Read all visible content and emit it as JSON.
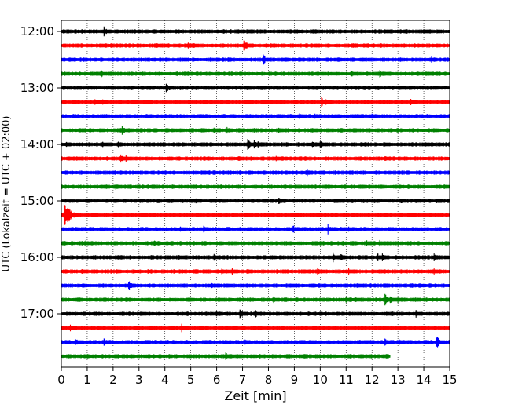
{
  "chart_data": {
    "type": "line",
    "title": "",
    "xlabel": "Zeit  [min]",
    "ylabel": "UTC (Lokalzeit = UTC + 02:00)",
    "xlim": [
      0,
      15
    ],
    "xticks": [
      "0",
      "1",
      "2",
      "3",
      "4",
      "5",
      "6",
      "7",
      "8",
      "9",
      "10",
      "11",
      "12",
      "13",
      "14",
      "15"
    ],
    "yticks": [
      "12:00",
      "13:00",
      "14:00",
      "15:00",
      "16:00",
      "17:00"
    ],
    "row_interval_min": 15,
    "row_colors": [
      "#000000",
      "#ff0000",
      "#0000ff",
      "#008000"
    ],
    "grid_x": "dotted vertical lines at each minute",
    "rows": [
      {
        "start": "12:00",
        "color": "#000000",
        "end_min": 15,
        "events": [
          [
            1.65,
            1.0
          ],
          [
            7.2,
            0.4
          ],
          [
            12.5,
            0.5
          ],
          [
            14.0,
            0.5
          ]
        ]
      },
      {
        "start": "12:15",
        "color": "#ff0000",
        "end_min": 15,
        "events": [
          [
            1.5,
            0.4
          ],
          [
            3.7,
            0.5
          ],
          [
            4.9,
            0.9
          ],
          [
            5.1,
            0.7
          ],
          [
            7.05,
            1.3
          ],
          [
            8.1,
            0.6
          ],
          [
            9.8,
            0.4
          ],
          [
            11.7,
            0.4
          ]
        ]
      },
      {
        "start": "12:30",
        "color": "#0000ff",
        "end_min": 15,
        "events": [
          [
            0.3,
            0.4
          ],
          [
            4.7,
            0.4
          ],
          [
            7.8,
            1.1
          ],
          [
            8.6,
            0.4
          ],
          [
            11.6,
            0.4
          ],
          [
            14.3,
            0.6
          ]
        ]
      },
      {
        "start": "12:45",
        "color": "#008000",
        "end_min": 15,
        "events": [
          [
            1.55,
            0.7
          ],
          [
            1.85,
            0.5
          ],
          [
            4.8,
            0.4
          ],
          [
            11.2,
            0.7
          ],
          [
            12.3,
            0.8
          ],
          [
            14.2,
            0.4
          ]
        ]
      },
      {
        "start": "13:00",
        "color": "#000000",
        "end_min": 15,
        "events": [
          [
            4.05,
            1.1
          ],
          [
            13.1,
            0.5
          ],
          [
            14.4,
            0.3
          ]
        ]
      },
      {
        "start": "13:15",
        "color": "#ff0000",
        "end_min": 15,
        "events": [
          [
            1.3,
            0.6
          ],
          [
            1.6,
            0.5
          ],
          [
            3.3,
            0.4
          ],
          [
            7.1,
            0.6
          ],
          [
            7.8,
            0.6
          ],
          [
            10.05,
            1.0
          ],
          [
            10.2,
            0.8
          ],
          [
            13.5,
            0.8
          ]
        ]
      },
      {
        "start": "13:30",
        "color": "#0000ff",
        "end_min": 15,
        "events": [
          [
            8.35,
            0.6
          ],
          [
            9.2,
            0.6
          ],
          [
            9.8,
            0.5
          ],
          [
            11.3,
            0.4
          ],
          [
            11.5,
            0.4
          ],
          [
            12.0,
            0.6
          ]
        ]
      },
      {
        "start": "13:45",
        "color": "#008000",
        "end_min": 15,
        "events": [
          [
            0.7,
            0.6
          ],
          [
            1.5,
            0.4
          ],
          [
            2.35,
            1.0
          ],
          [
            5.9,
            0.7
          ],
          [
            6.4,
            0.6
          ],
          [
            8.4,
            0.5
          ],
          [
            9.7,
            0.5
          ],
          [
            14.4,
            0.5
          ]
        ]
      },
      {
        "start": "14:00",
        "color": "#000000",
        "end_min": 15,
        "events": [
          [
            0.2,
            0.5
          ],
          [
            1.6,
            0.5
          ],
          [
            2.2,
            0.5
          ],
          [
            7.2,
            1.1
          ],
          [
            7.45,
            0.9
          ],
          [
            7.6,
            0.8
          ],
          [
            9.7,
            0.6
          ],
          [
            10.0,
            1.0
          ],
          [
            12.5,
            0.4
          ],
          [
            14.0,
            0.5
          ]
        ]
      },
      {
        "start": "14:15",
        "color": "#ff0000",
        "end_min": 15,
        "events": [
          [
            0.3,
            0.5
          ],
          [
            0.6,
            0.5
          ],
          [
            2.3,
            1.0
          ],
          [
            2.5,
            0.6
          ],
          [
            6.85,
            0.6
          ],
          [
            8.3,
            0.5
          ],
          [
            12.5,
            0.6
          ]
        ]
      },
      {
        "start": "14:30",
        "color": "#0000ff",
        "end_min": 15,
        "events": [
          [
            5.5,
            0.4
          ],
          [
            9.5,
            0.6
          ],
          [
            10.0,
            0.4
          ]
        ]
      },
      {
        "start": "14:45",
        "color": "#008000",
        "end_min": 15,
        "events": [
          [
            1.55,
            0.5
          ],
          [
            2.1,
            0.7
          ],
          [
            11.55,
            0.6
          ],
          [
            14.8,
            0.6
          ]
        ]
      },
      {
        "start": "15:00",
        "color": "#000000",
        "end_min": 15,
        "events": [
          [
            5.2,
            0.6
          ],
          [
            5.8,
            0.5
          ],
          [
            7.8,
            0.5
          ],
          [
            8.4,
            1.0
          ],
          [
            10.6,
            0.5
          ],
          [
            13.1,
            0.6
          ],
          [
            13.7,
            0.5
          ],
          [
            14.5,
            0.6
          ]
        ]
      },
      {
        "start": "15:15",
        "color": "#ff0000",
        "end_min": 15,
        "events": [
          [
            0.12,
            2.6
          ],
          [
            0.3,
            1.0
          ],
          [
            1.2,
            0.6
          ],
          [
            3.1,
            0.5
          ],
          [
            13.5,
            0.5
          ]
        ]
      },
      {
        "start": "15:30",
        "color": "#0000ff",
        "end_min": 15,
        "events": [
          [
            4.6,
            0.5
          ],
          [
            5.5,
            0.7
          ],
          [
            8.95,
            0.9
          ],
          [
            10.3,
            1.0
          ],
          [
            10.8,
            0.5
          ],
          [
            11.1,
            0.5
          ]
        ]
      },
      {
        "start": "15:45",
        "color": "#008000",
        "end_min": 15,
        "events": [
          [
            0.95,
            0.6
          ],
          [
            3.6,
            0.6
          ],
          [
            11.8,
            0.6
          ],
          [
            12.3,
            0.7
          ],
          [
            12.5,
            0.6
          ]
        ]
      },
      {
        "start": "16:00",
        "color": "#000000",
        "end_min": 15,
        "events": [
          [
            2.2,
            0.4
          ],
          [
            4.55,
            0.5
          ],
          [
            5.9,
            0.7
          ],
          [
            10.5,
            0.9
          ],
          [
            10.8,
            0.8
          ],
          [
            12.2,
            0.9
          ],
          [
            12.4,
            0.9
          ],
          [
            14.4,
            0.9
          ]
        ]
      },
      {
        "start": "16:15",
        "color": "#ff0000",
        "end_min": 15,
        "events": [
          [
            0.8,
            0.5
          ],
          [
            5.5,
            0.5
          ],
          [
            6.2,
            0.6
          ],
          [
            6.6,
            0.6
          ],
          [
            7.2,
            0.5
          ],
          [
            8.6,
            0.5
          ],
          [
            9.4,
            0.5
          ],
          [
            9.9,
            0.8
          ],
          [
            11.1,
            0.7
          ],
          [
            14.4,
            0.6
          ]
        ]
      },
      {
        "start": "16:30",
        "color": "#0000ff",
        "end_min": 15,
        "events": [
          [
            2.6,
            1.1
          ],
          [
            5.8,
            0.7
          ],
          [
            6.4,
            0.6
          ],
          [
            8.9,
            0.5
          ],
          [
            9.6,
            0.4
          ],
          [
            11.5,
            0.5
          ],
          [
            12.5,
            0.4
          ]
        ]
      },
      {
        "start": "16:45",
        "color": "#008000",
        "end_min": 15,
        "events": [
          [
            0.6,
            0.6
          ],
          [
            4.9,
            0.4
          ],
          [
            6.1,
            0.4
          ],
          [
            8.2,
            0.6
          ],
          [
            11.0,
            0.7
          ],
          [
            11.35,
            0.6
          ],
          [
            12.5,
            1.2
          ],
          [
            12.7,
            0.9
          ],
          [
            13.0,
            0.6
          ]
        ]
      },
      {
        "start": "17:00",
        "color": "#000000",
        "end_min": 15,
        "events": [
          [
            3.1,
            0.4
          ],
          [
            6.0,
            0.5
          ],
          [
            6.9,
            1.1
          ],
          [
            7.5,
            0.8
          ],
          [
            13.7,
            0.7
          ]
        ]
      },
      {
        "start": "17:15",
        "color": "#ff0000",
        "end_min": 15,
        "events": [
          [
            0.35,
            0.6
          ],
          [
            2.85,
            0.4
          ],
          [
            4.65,
            0.8
          ]
        ]
      },
      {
        "start": "17:30",
        "color": "#0000ff",
        "end_min": 15,
        "events": [
          [
            0.55,
            0.8
          ],
          [
            1.65,
            0.9
          ],
          [
            7.1,
            0.5
          ],
          [
            9.6,
            0.4
          ],
          [
            11.0,
            0.5
          ],
          [
            12.5,
            0.7
          ],
          [
            13.05,
            0.6
          ],
          [
            14.5,
            1.3
          ]
        ]
      },
      {
        "start": "17:45",
        "color": "#008000",
        "end_min": 12.7,
        "events": [
          [
            6.35,
            0.8
          ]
        ]
      }
    ]
  }
}
